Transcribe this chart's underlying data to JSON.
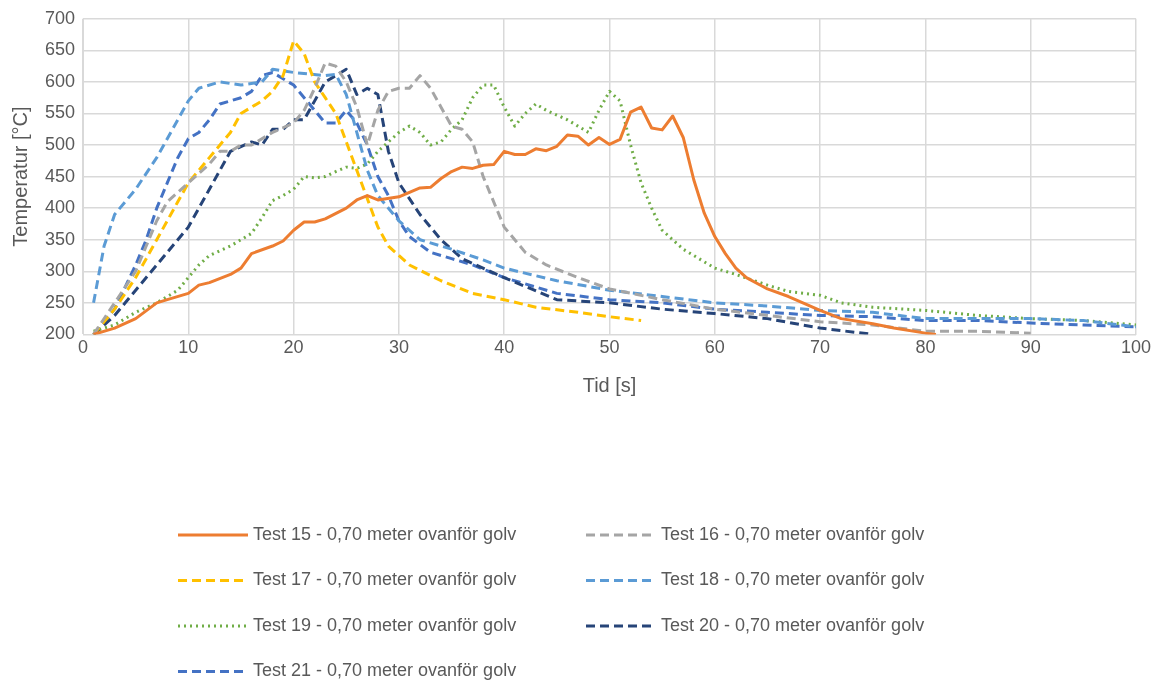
{
  "chart_data": {
    "type": "line",
    "xlabel": "Tid [s]",
    "ylabel": "Temperatur [°C]",
    "xlim": [
      0,
      100
    ],
    "xticks": [
      0,
      10,
      20,
      30,
      40,
      50,
      60,
      70,
      80,
      90,
      100
    ],
    "ylim": [
      200,
      700
    ],
    "yticks": [
      200,
      250,
      300,
      350,
      400,
      450,
      500,
      550,
      600,
      650,
      700
    ],
    "grid": true,
    "legend": "bottom",
    "marker": "none",
    "series": [
      {
        "name": "Test 15 - 0,70 meter ovanför golv",
        "color": "#ed7d31",
        "line_style": "solid",
        "x": [
          1,
          3,
          5,
          7,
          8,
          10,
          11,
          12,
          14,
          15,
          16,
          18,
          19,
          20,
          21,
          22,
          23,
          25,
          26,
          27,
          28,
          30,
          31,
          32,
          33,
          34,
          35,
          36,
          37,
          38,
          39,
          40,
          41,
          42,
          43,
          44,
          45,
          46,
          47,
          48,
          49,
          50,
          51,
          52,
          53,
          54,
          55,
          56,
          57,
          58,
          59,
          60,
          61,
          62,
          63,
          65,
          67,
          70,
          72,
          75,
          77,
          80,
          81
        ],
        "values": [
          200,
          210,
          225,
          250,
          255,
          265,
          278,
          282,
          295,
          305,
          328,
          340,
          348,
          365,
          378,
          378,
          383,
          400,
          413,
          420,
          413,
          418,
          425,
          432,
          433,
          447,
          458,
          465,
          463,
          468,
          469,
          490,
          485,
          485,
          494,
          491,
          498,
          516,
          514,
          500,
          512,
          501,
          509,
          552,
          560,
          527,
          524,
          546,
          512,
          445,
          392,
          355,
          328,
          305,
          290,
          272,
          260,
          238,
          225,
          217,
          210,
          202,
          200
        ]
      },
      {
        "name": "Test 16 - 0,70 meter ovanför golv",
        "color": "#a5a5a5",
        "line_style": "dashed",
        "x": [
          1,
          3,
          5,
          6,
          7,
          8,
          9,
          10,
          12,
          13,
          14,
          15,
          16,
          18,
          20,
          21,
          22,
          23,
          24,
          25,
          26,
          27,
          28,
          29,
          30,
          31,
          32,
          33,
          34,
          35,
          36,
          37,
          38,
          40,
          42,
          44,
          47,
          50,
          55,
          60,
          65,
          70,
          75,
          80,
          85,
          90
        ],
        "values": [
          200,
          250,
          300,
          340,
          380,
          410,
          425,
          440,
          470,
          490,
          490,
          500,
          500,
          520,
          535,
          555,
          590,
          630,
          625,
          600,
          560,
          500,
          555,
          585,
          590,
          590,
          610,
          590,
          560,
          530,
          525,
          505,
          450,
          370,
          330,
          310,
          290,
          272,
          255,
          240,
          230,
          220,
          215,
          205,
          205,
          202
        ]
      },
      {
        "name": "Test 17 - 0,70 meter ovanför golv",
        "color": "#ffc000",
        "line_style": "dashed",
        "x": [
          1,
          3,
          5,
          6,
          7,
          8,
          9,
          10,
          12,
          14,
          15,
          17,
          18,
          19,
          20,
          21,
          22,
          23,
          24,
          26,
          28,
          29,
          31,
          34,
          37,
          40,
          43,
          47,
          50,
          53
        ],
        "values": [
          200,
          240,
          290,
          320,
          350,
          380,
          410,
          440,
          480,
          520,
          550,
          570,
          585,
          610,
          665,
          645,
          600,
          575,
          550,
          460,
          370,
          340,
          310,
          285,
          265,
          255,
          243,
          235,
          228,
          222
        ]
      },
      {
        "name": "Test 18 - 0,70 meter ovanför golv",
        "color": "#5b9bd5",
        "line_style": "dashed",
        "x": [
          1,
          2,
          3,
          5,
          7,
          8,
          10,
          11,
          13,
          15,
          17,
          18,
          20,
          23,
          24,
          25,
          26,
          27,
          28,
          30,
          32,
          35,
          38,
          40,
          45,
          50,
          55,
          60,
          65,
          70,
          75,
          80,
          85,
          90,
          95,
          100
        ],
        "values": [
          250,
          340,
          390,
          430,
          480,
          510,
          570,
          590,
          600,
          595,
          600,
          620,
          615,
          610,
          612,
          580,
          520,
          460,
          420,
          380,
          350,
          335,
          318,
          305,
          285,
          270,
          260,
          250,
          245,
          238,
          235,
          225,
          225,
          225,
          222,
          212
        ]
      },
      {
        "name": "Test 19 - 0,70 meter ovanför golv",
        "color": "#70ad47",
        "line_style": "dotted",
        "x": [
          1,
          3,
          5,
          7,
          9,
          10,
          11,
          12,
          14,
          16,
          17,
          18,
          19,
          20,
          21,
          22,
          23,
          24,
          25,
          26,
          27,
          28,
          29,
          30,
          31,
          32,
          33,
          34,
          35,
          36,
          37,
          38,
          39,
          40,
          41,
          42,
          43,
          44,
          46,
          47,
          48,
          49,
          50,
          51,
          52,
          53,
          54,
          55,
          57,
          60,
          62,
          65,
          67,
          70,
          72,
          75,
          80,
          85,
          90,
          95,
          100
        ],
        "values": [
          205,
          215,
          235,
          250,
          270,
          290,
          310,
          325,
          340,
          360,
          385,
          412,
          420,
          430,
          450,
          448,
          450,
          458,
          465,
          463,
          470,
          490,
          505,
          520,
          530,
          520,
          500,
          505,
          525,
          540,
          575,
          595,
          595,
          560,
          530,
          550,
          565,
          555,
          540,
          530,
          520,
          555,
          585,
          570,
          500,
          440,
          400,
          365,
          335,
          305,
          295,
          278,
          268,
          262,
          250,
          243,
          238,
          230,
          225,
          222,
          215
        ]
      },
      {
        "name": "Test 20 - 0,70 meter ovanför golv",
        "color": "#264478",
        "line_style": "dashed",
        "x": [
          1,
          3,
          5,
          7,
          8,
          10,
          11,
          12,
          13,
          14,
          16,
          17,
          18,
          19,
          20,
          21,
          22,
          23,
          25,
          26,
          27,
          28,
          29,
          30,
          32,
          34,
          36,
          40,
          45,
          50,
          55,
          60,
          65,
          70,
          75
        ],
        "values": [
          200,
          230,
          270,
          310,
          330,
          370,
          400,
          430,
          460,
          490,
          505,
          500,
          525,
          525,
          540,
          540,
          570,
          600,
          620,
          580,
          590,
          580,
          490,
          440,
          390,
          350,
          320,
          290,
          255,
          250,
          240,
          233,
          225,
          210,
          200
        ]
      },
      {
        "name": "Test 21 - 0,70 meter ovanför golv",
        "color": "#4472c4",
        "line_style": "dashed",
        "x": [
          1,
          3,
          5,
          6,
          7,
          8,
          9,
          10,
          11,
          12,
          13,
          15,
          16,
          17,
          18,
          19,
          20,
          21,
          22,
          23,
          24,
          25,
          26,
          27,
          28,
          29,
          30,
          31,
          33,
          35,
          37,
          40,
          45,
          50,
          55,
          60,
          65,
          70,
          75,
          80,
          85,
          90,
          95,
          100
        ],
        "values": [
          200,
          240,
          310,
          350,
          400,
          440,
          480,
          510,
          520,
          540,
          565,
          575,
          585,
          610,
          615,
          605,
          595,
          575,
          555,
          535,
          535,
          555,
          535,
          500,
          450,
          420,
          380,
          355,
          330,
          320,
          310,
          290,
          265,
          255,
          250,
          240,
          235,
          230,
          228,
          222,
          222,
          218,
          215,
          212
        ]
      }
    ]
  }
}
